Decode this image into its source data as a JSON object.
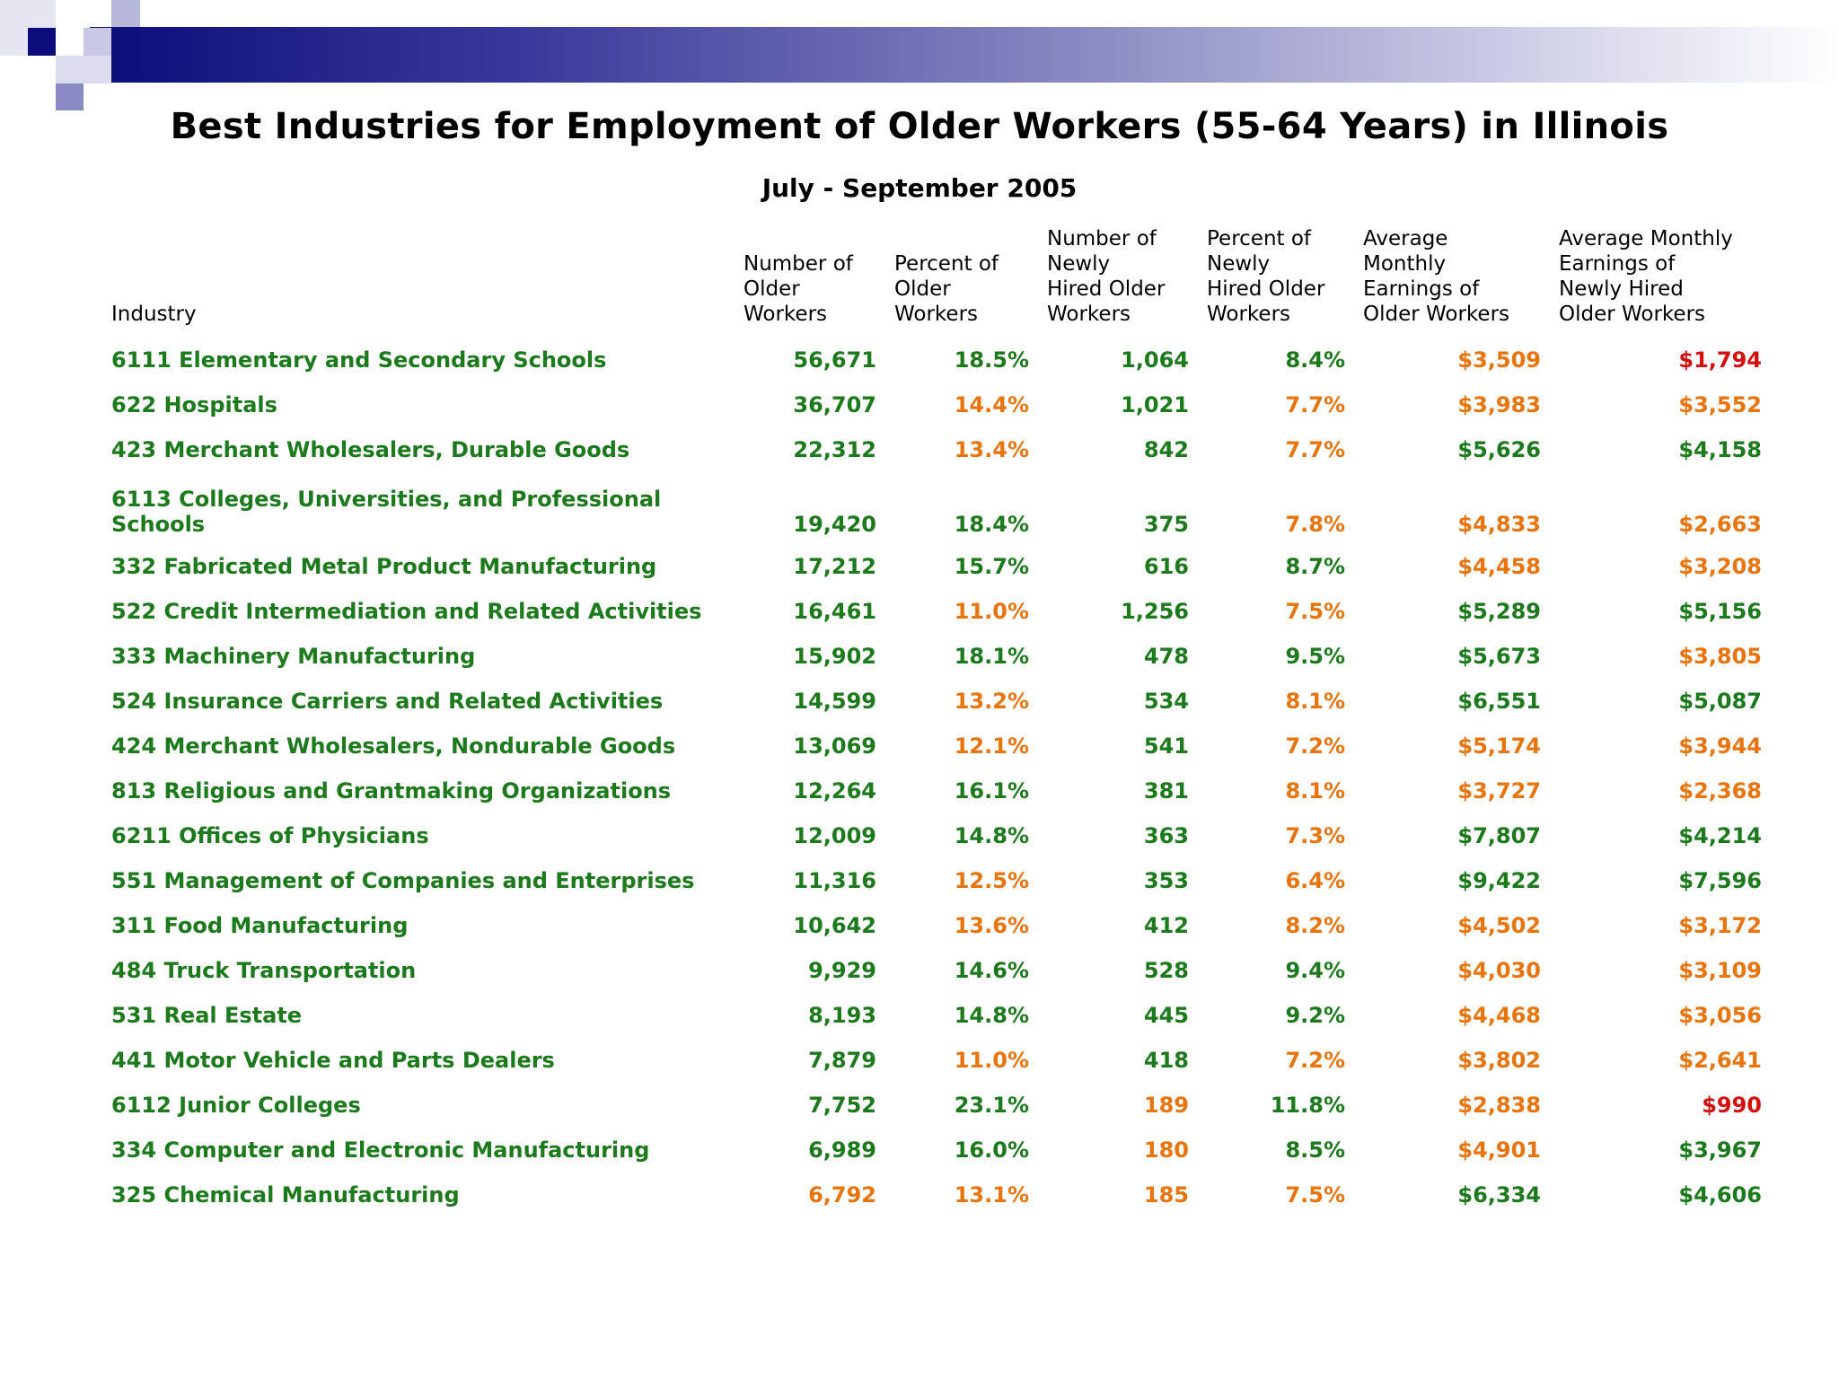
{
  "title": "Best Industries for Employment of Older Workers (55-64 Years) in Illinois",
  "subtitle": "July - September 2005",
  "colors": {
    "green": "#1c7a1c",
    "orange": "#e8740e",
    "red": "#d40f0f",
    "header_band_dark": "#0c0c7a"
  },
  "table": {
    "headers": [
      "Industry",
      "Number of\nOlder\nWorkers",
      "Percent of\nOlder\nWorkers",
      "Number of\nNewly\nHired Older\nWorkers",
      "Percent of\nNewly\nHired Older\nWorkers",
      "Average\nMonthly\nEarnings of\nOlder Workers",
      "Average Monthly\nEarnings of\nNewly Hired\nOlder Workers"
    ],
    "rows": [
      {
        "industry": "6111 Elementary and Secondary Schools",
        "cells": [
          {
            "v": "56,671",
            "c": "g"
          },
          {
            "v": "18.5%",
            "c": "g"
          },
          {
            "v": "1,064",
            "c": "g"
          },
          {
            "v": "8.4%",
            "c": "g"
          },
          {
            "v": "$3,509",
            "c": "o"
          },
          {
            "v": "$1,794",
            "c": "r"
          }
        ]
      },
      {
        "industry": "622 Hospitals",
        "cells": [
          {
            "v": "36,707",
            "c": "g"
          },
          {
            "v": "14.4%",
            "c": "o"
          },
          {
            "v": "1,021",
            "c": "g"
          },
          {
            "v": "7.7%",
            "c": "o"
          },
          {
            "v": "$3,983",
            "c": "o"
          },
          {
            "v": "$3,552",
            "c": "o"
          }
        ]
      },
      {
        "industry": "423 Merchant Wholesalers, Durable Goods",
        "cells": [
          {
            "v": "22,312",
            "c": "g"
          },
          {
            "v": "13.4%",
            "c": "o"
          },
          {
            "v": "842",
            "c": "g"
          },
          {
            "v": "7.7%",
            "c": "o"
          },
          {
            "v": "$5,626",
            "c": "g"
          },
          {
            "v": "$4,158",
            "c": "g"
          }
        ]
      },
      {
        "industry": "6113 Colleges, Universities, and Professional Schools",
        "tall": true,
        "cells": [
          {
            "v": "19,420",
            "c": "g"
          },
          {
            "v": "18.4%",
            "c": "g"
          },
          {
            "v": "375",
            "c": "g"
          },
          {
            "v": "7.8%",
            "c": "o"
          },
          {
            "v": "$4,833",
            "c": "o"
          },
          {
            "v": "$2,663",
            "c": "o"
          }
        ]
      },
      {
        "industry": "332 Fabricated Metal Product Manufacturing",
        "cells": [
          {
            "v": "17,212",
            "c": "g"
          },
          {
            "v": "15.7%",
            "c": "g"
          },
          {
            "v": "616",
            "c": "g"
          },
          {
            "v": "8.7%",
            "c": "g"
          },
          {
            "v": "$4,458",
            "c": "o"
          },
          {
            "v": "$3,208",
            "c": "o"
          }
        ]
      },
      {
        "industry": "522 Credit Intermediation and Related Activities",
        "cells": [
          {
            "v": "16,461",
            "c": "g"
          },
          {
            "v": "11.0%",
            "c": "o"
          },
          {
            "v": "1,256",
            "c": "g"
          },
          {
            "v": "7.5%",
            "c": "o"
          },
          {
            "v": "$5,289",
            "c": "g"
          },
          {
            "v": "$5,156",
            "c": "g"
          }
        ]
      },
      {
        "industry": "333 Machinery Manufacturing",
        "cells": [
          {
            "v": "15,902",
            "c": "g"
          },
          {
            "v": "18.1%",
            "c": "g"
          },
          {
            "v": "478",
            "c": "g"
          },
          {
            "v": "9.5%",
            "c": "g"
          },
          {
            "v": "$5,673",
            "c": "g"
          },
          {
            "v": "$3,805",
            "c": "o"
          }
        ]
      },
      {
        "industry": "524 Insurance Carriers and Related Activities",
        "cells": [
          {
            "v": "14,599",
            "c": "g"
          },
          {
            "v": "13.2%",
            "c": "o"
          },
          {
            "v": "534",
            "c": "g"
          },
          {
            "v": "8.1%",
            "c": "o"
          },
          {
            "v": "$6,551",
            "c": "g"
          },
          {
            "v": "$5,087",
            "c": "g"
          }
        ]
      },
      {
        "industry": "424 Merchant Wholesalers, Nondurable Goods",
        "cells": [
          {
            "v": "13,069",
            "c": "g"
          },
          {
            "v": "12.1%",
            "c": "o"
          },
          {
            "v": "541",
            "c": "g"
          },
          {
            "v": "7.2%",
            "c": "o"
          },
          {
            "v": "$5,174",
            "c": "o"
          },
          {
            "v": "$3,944",
            "c": "o"
          }
        ]
      },
      {
        "industry": "813 Religious and Grantmaking Organizations",
        "cells": [
          {
            "v": "12,264",
            "c": "g"
          },
          {
            "v": "16.1%",
            "c": "g"
          },
          {
            "v": "381",
            "c": "g"
          },
          {
            "v": "8.1%",
            "c": "o"
          },
          {
            "v": "$3,727",
            "c": "o"
          },
          {
            "v": "$2,368",
            "c": "o"
          }
        ]
      },
      {
        "industry": "6211 Offices of Physicians",
        "cells": [
          {
            "v": "12,009",
            "c": "g"
          },
          {
            "v": "14.8%",
            "c": "g"
          },
          {
            "v": "363",
            "c": "g"
          },
          {
            "v": "7.3%",
            "c": "o"
          },
          {
            "v": "$7,807",
            "c": "g"
          },
          {
            "v": "$4,214",
            "c": "g"
          }
        ]
      },
      {
        "industry": "551 Management of Companies and Enterprises",
        "cells": [
          {
            "v": "11,316",
            "c": "g"
          },
          {
            "v": "12.5%",
            "c": "o"
          },
          {
            "v": "353",
            "c": "g"
          },
          {
            "v": "6.4%",
            "c": "o"
          },
          {
            "v": "$9,422",
            "c": "g"
          },
          {
            "v": "$7,596",
            "c": "g"
          }
        ]
      },
      {
        "industry": "311 Food Manufacturing",
        "cells": [
          {
            "v": "10,642",
            "c": "g"
          },
          {
            "v": "13.6%",
            "c": "o"
          },
          {
            "v": "412",
            "c": "g"
          },
          {
            "v": "8.2%",
            "c": "o"
          },
          {
            "v": "$4,502",
            "c": "o"
          },
          {
            "v": "$3,172",
            "c": "o"
          }
        ]
      },
      {
        "industry": "484 Truck Transportation",
        "cells": [
          {
            "v": "9,929",
            "c": "g"
          },
          {
            "v": "14.6%",
            "c": "g"
          },
          {
            "v": "528",
            "c": "g"
          },
          {
            "v": "9.4%",
            "c": "g"
          },
          {
            "v": "$4,030",
            "c": "o"
          },
          {
            "v": "$3,109",
            "c": "o"
          }
        ]
      },
      {
        "industry": "531 Real Estate",
        "cells": [
          {
            "v": "8,193",
            "c": "g"
          },
          {
            "v": "14.8%",
            "c": "g"
          },
          {
            "v": "445",
            "c": "g"
          },
          {
            "v": "9.2%",
            "c": "g"
          },
          {
            "v": "$4,468",
            "c": "o"
          },
          {
            "v": "$3,056",
            "c": "o"
          }
        ]
      },
      {
        "industry": "441 Motor Vehicle and Parts Dealers",
        "cells": [
          {
            "v": "7,879",
            "c": "g"
          },
          {
            "v": "11.0%",
            "c": "o"
          },
          {
            "v": "418",
            "c": "g"
          },
          {
            "v": "7.2%",
            "c": "o"
          },
          {
            "v": "$3,802",
            "c": "o"
          },
          {
            "v": "$2,641",
            "c": "o"
          }
        ]
      },
      {
        "industry": "6112 Junior Colleges",
        "cells": [
          {
            "v": "7,752",
            "c": "g"
          },
          {
            "v": "23.1%",
            "c": "g"
          },
          {
            "v": "189",
            "c": "o"
          },
          {
            "v": "11.8%",
            "c": "g"
          },
          {
            "v": "$2,838",
            "c": "o"
          },
          {
            "v": "$990",
            "c": "r"
          }
        ]
      },
      {
        "industry": "334 Computer and Electronic Manufacturing",
        "cells": [
          {
            "v": "6,989",
            "c": "g"
          },
          {
            "v": "16.0%",
            "c": "g"
          },
          {
            "v": "180",
            "c": "o"
          },
          {
            "v": "8.5%",
            "c": "g"
          },
          {
            "v": "$4,901",
            "c": "o"
          },
          {
            "v": "$3,967",
            "c": "g"
          }
        ]
      },
      {
        "industry": "325 Chemical Manufacturing",
        "cells": [
          {
            "v": "6,792",
            "c": "o"
          },
          {
            "v": "13.1%",
            "c": "o"
          },
          {
            "v": "185",
            "c": "o"
          },
          {
            "v": "7.5%",
            "c": "o"
          },
          {
            "v": "$6,334",
            "c": "g"
          },
          {
            "v": "$4,606",
            "c": "g"
          }
        ]
      }
    ]
  }
}
